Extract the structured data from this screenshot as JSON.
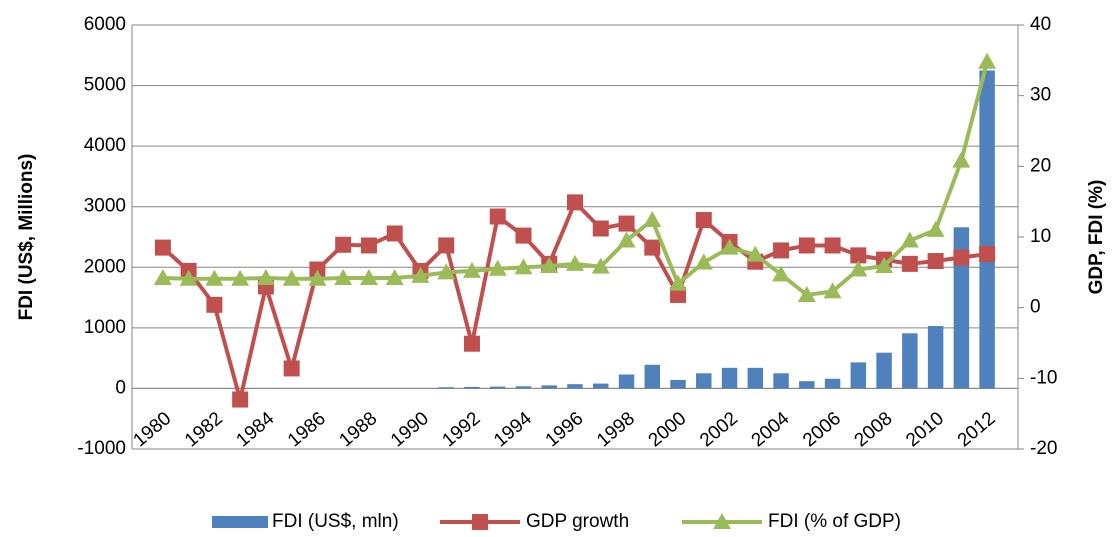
{
  "chart_data": {
    "type": "combo",
    "categories": [
      "1980",
      null,
      "1982",
      null,
      "1984",
      null,
      "1986",
      null,
      "1988",
      null,
      "1990",
      null,
      "1992",
      null,
      "1994",
      null,
      "1996",
      null,
      "1998",
      null,
      "2000",
      null,
      "2002",
      null,
      "2004",
      null,
      "2006",
      null,
      "2008",
      null,
      "2010",
      null,
      "2012"
    ],
    "y_label": "FDI (US$, Millions)",
    "y2_label": "GDP, FDI (%)",
    "ylim": [
      -1000,
      6000
    ],
    "yticks": [
      -1000,
      0,
      1000,
      2000,
      3000,
      4000,
      5000,
      6000
    ],
    "y2lim": [
      -20,
      40
    ],
    "y2ticks": [
      -20,
      -10,
      0,
      10,
      20,
      30,
      40
    ],
    "grid": true,
    "legend": "bottom",
    "series": [
      {
        "name": "FDI (US$, mln)",
        "type": "bar",
        "color": "#4f81bd",
        "values": [
          0,
          0,
          0,
          0,
          0,
          0,
          0,
          0,
          0,
          0,
          0,
          20,
          25,
          30,
          35,
          50,
          70,
          80,
          230,
          390,
          140,
          250,
          340,
          340,
          250,
          120,
          160,
          430,
          590,
          910,
          1030,
          2660,
          5250
        ]
      },
      {
        "name": "GDP growth",
        "type": "line",
        "axis": "y2",
        "marker": "square",
        "color": "#c0504d",
        "values": [
          8.5,
          5.2,
          0.4,
          -13.0,
          3.0,
          -8.6,
          5.4,
          8.9,
          8.8,
          10.5,
          5.2,
          8.8,
          -5.1,
          12.9,
          10.2,
          6.2,
          14.9,
          11.2,
          11.9,
          8.5,
          1.8,
          12.4,
          9.3,
          6.5,
          8.1,
          8.8,
          8.8,
          7.4,
          6.8,
          6.2,
          6.6,
          7.1,
          7.6
        ]
      },
      {
        "name": "FDI (% of GDP)",
        "type": "line",
        "axis": "y2",
        "marker": "triangle",
        "color": "#9bbb59",
        "values": [
          4.2,
          4.1,
          4.1,
          4.1,
          4.2,
          4.1,
          4.1,
          4.2,
          4.2,
          4.2,
          4.5,
          5.0,
          5.2,
          5.5,
          5.7,
          5.9,
          6.2,
          5.8,
          9.5,
          12.4,
          3.4,
          6.4,
          8.5,
          7.5,
          4.7,
          1.8,
          2.3,
          5.4,
          5.9,
          9.5,
          11.0,
          20.8,
          34.8
        ]
      }
    ]
  }
}
